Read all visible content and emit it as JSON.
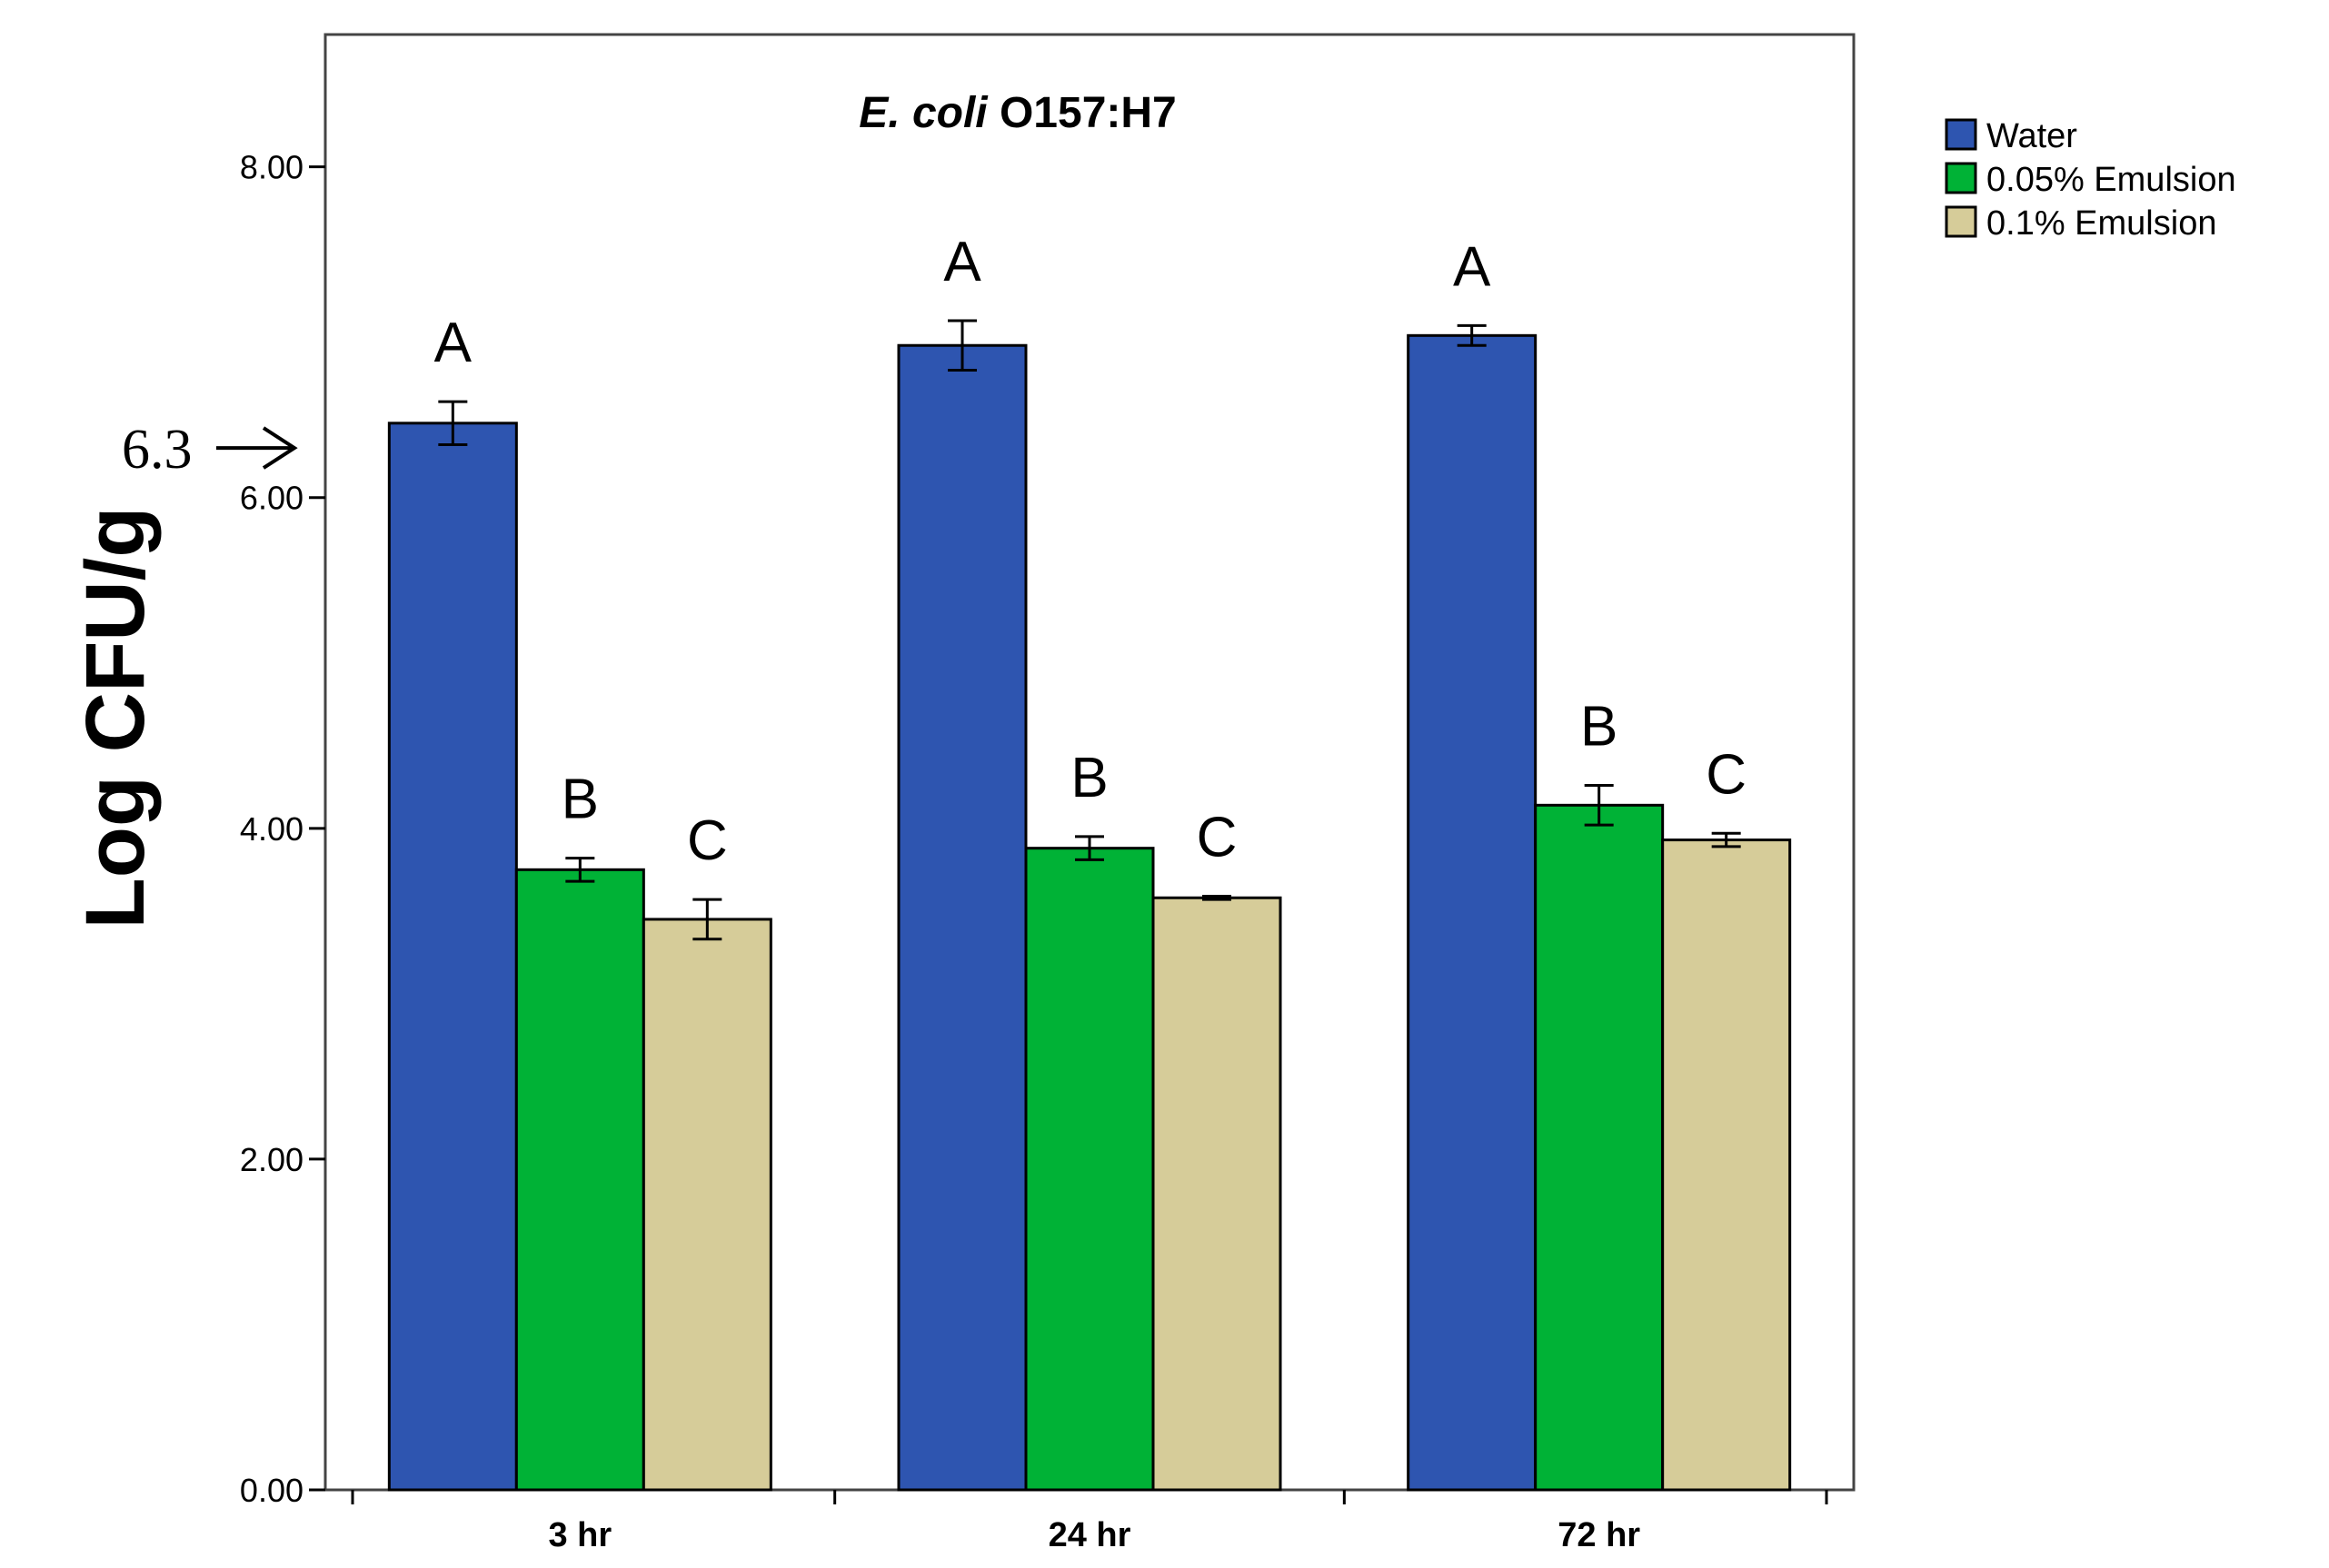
{
  "chart_data": {
    "type": "bar",
    "title_italic": "E. coli",
    "title_rest": " O157:H7",
    "ylabel": "Log CFU/g",
    "xlabel": "",
    "ylim": [
      0,
      8.8
    ],
    "yticks": [
      0,
      2,
      4,
      6,
      8
    ],
    "ytick_labels": [
      "0.00",
      "2.00",
      "4.00",
      "6.00",
      "8.00"
    ],
    "categories": [
      "3 hr",
      "24 hr",
      "72 hr"
    ],
    "series": [
      {
        "name": "Water",
        "color": "#2E55B0",
        "values": [
          6.45,
          6.92,
          6.98
        ],
        "errors": [
          0.13,
          0.15,
          0.06
        ],
        "letters": [
          "A",
          "A",
          "A"
        ]
      },
      {
        "name": "0.05% Emulsion",
        "color": "#00B236",
        "values": [
          3.75,
          3.88,
          4.14
        ],
        "errors": [
          0.07,
          0.07,
          0.12
        ],
        "letters": [
          "B",
          "B",
          "B"
        ]
      },
      {
        "name": "0.1% Emulsion",
        "color": "#D6CC99",
        "values": [
          3.45,
          3.58,
          3.93
        ],
        "errors": [
          0.12,
          0.01,
          0.04
        ],
        "letters": [
          "C",
          "C",
          "C"
        ]
      }
    ],
    "annotation": {
      "text": "6.3",
      "arrow": "→",
      "value": 6.3
    },
    "legend_position": "top-right, outside plot"
  }
}
